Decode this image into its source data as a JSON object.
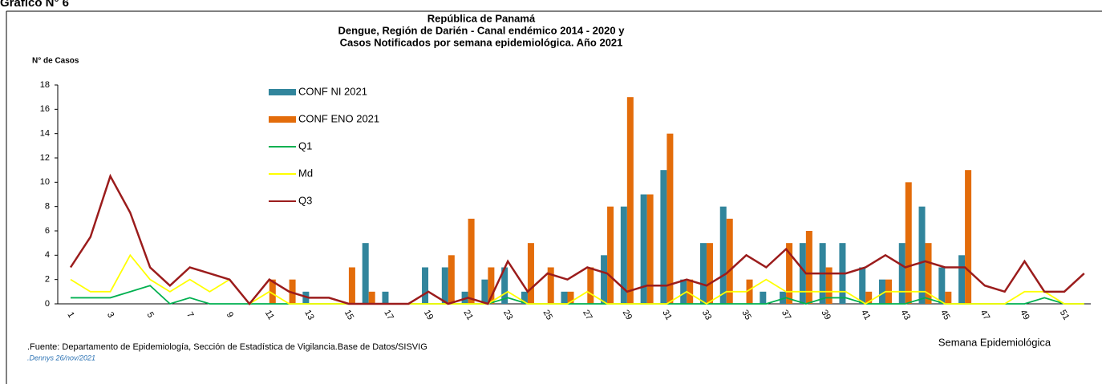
{
  "header": {
    "figure_label": "Gráfico N° 6"
  },
  "chart_data": {
    "type": "bar",
    "title": [
      "República de Panamá",
      "Dengue, Región de Darién - Canal endémico 2014 - 2020 y",
      "Casos Notificados  por semana epidemiológica.  Año 2021"
    ],
    "y_label": "N° de Casos",
    "x_label": "Semana  Epidemiológica",
    "source": ".Fuente: Departamento de Epidemiología, Sección de Estadística de Vigilancia.Base de Datos/SISVIG",
    "author": ".Dennys  26/nov/2021",
    "categories": [
      "1",
      null,
      "3",
      null,
      "5",
      null,
      "7",
      null,
      "9",
      null,
      "11",
      null,
      "13",
      null,
      "15",
      null,
      "17",
      null,
      "19",
      null,
      "21",
      null,
      "23",
      null,
      "25",
      null,
      "27",
      null,
      "29",
      null,
      "31",
      null,
      "33",
      null,
      "35",
      null,
      "37",
      null,
      "39",
      null,
      "41",
      null,
      "43",
      null,
      "45",
      null,
      "47",
      null,
      "49",
      null,
      "51",
      null
    ],
    "ylim": [
      0,
      18
    ],
    "yticks": [
      0,
      2,
      4,
      6,
      8,
      10,
      12,
      14,
      16,
      18
    ],
    "grid": false,
    "legend": "inside-top-left",
    "series": [
      {
        "name": "CONF NI 2021",
        "kind": "bar",
        "color": "#31859c",
        "values": [
          0,
          0,
          0,
          0,
          0,
          0,
          0,
          0,
          0,
          0,
          0,
          0,
          1,
          0,
          0,
          5,
          1,
          0,
          3,
          3,
          1,
          2,
          3,
          1,
          0,
          1,
          0,
          4,
          8,
          9,
          11,
          2,
          5,
          8,
          0,
          1,
          1,
          5,
          5,
          5,
          3,
          2,
          5,
          8,
          3,
          4,
          0,
          0,
          0,
          0,
          0,
          0
        ]
      },
      {
        "name": "CONF ENO 2021",
        "kind": "bar",
        "color": "#e36c0a",
        "values": [
          0,
          0,
          0,
          0,
          0,
          0,
          0,
          0,
          0,
          0,
          2,
          2,
          0,
          0,
          3,
          1,
          0,
          0,
          0,
          4,
          7,
          3,
          0,
          5,
          3,
          1,
          3,
          8,
          17,
          9,
          14,
          2,
          5,
          7,
          2,
          0,
          5,
          6,
          3,
          0,
          1,
          2,
          10,
          5,
          1,
          11,
          0,
          0,
          0,
          0,
          0,
          0
        ]
      },
      {
        "name": "Q1",
        "kind": "line",
        "color": "#00b050",
        "values": [
          0.5,
          0.5,
          0.5,
          1,
          1.5,
          0,
          0.5,
          0,
          0,
          0,
          0,
          0,
          0,
          0,
          0,
          0,
          0,
          0,
          0,
          0,
          0,
          0,
          0.5,
          0,
          0,
          0,
          0,
          0,
          0,
          0,
          0,
          0,
          0,
          0,
          0,
          0,
          0.5,
          0,
          0.5,
          0.5,
          0,
          0,
          0,
          0.5,
          0,
          0,
          0,
          0,
          0,
          0.5,
          0,
          0
        ]
      },
      {
        "name": "Md",
        "kind": "line",
        "color": "#ffff00",
        "values": [
          2,
          1,
          1,
          4,
          2,
          1,
          2,
          1,
          2,
          0,
          1,
          0,
          0,
          0,
          0,
          0,
          0,
          0,
          0,
          0,
          0,
          0,
          1,
          0,
          0,
          0,
          1,
          0,
          0,
          0,
          0,
          1,
          0,
          1,
          1,
          2,
          1,
          1,
          1,
          1,
          0,
          1,
          1,
          1,
          0,
          0,
          0,
          0,
          1,
          1,
          0,
          0
        ]
      },
      {
        "name": "Q3",
        "kind": "line",
        "color": "#9b1c1c",
        "values": [
          3,
          5.5,
          10.5,
          7.5,
          3,
          1.5,
          3,
          2.5,
          2,
          0,
          2,
          1,
          0.5,
          0.5,
          0,
          0,
          0,
          0,
          1,
          0,
          0.5,
          0,
          3.5,
          1,
          2.5,
          2,
          3,
          2.5,
          1,
          1.5,
          1.5,
          2,
          1.5,
          2.5,
          4,
          3,
          4.5,
          2.5,
          2.5,
          2.5,
          3,
          4,
          3,
          3.5,
          3,
          3,
          1.5,
          1,
          3.5,
          1,
          1,
          2.5
        ]
      }
    ]
  }
}
